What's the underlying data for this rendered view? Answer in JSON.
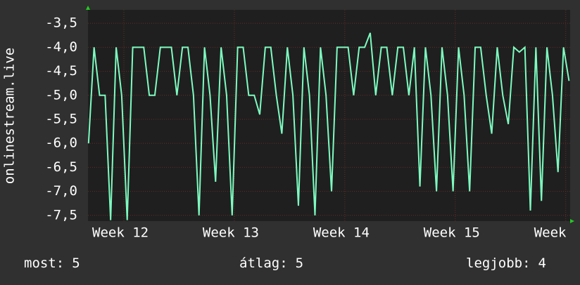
{
  "chart_data": {
    "type": "line",
    "ylabel": "onlinestream.live",
    "x": [
      11.68,
      11.73,
      11.78,
      11.83,
      11.88,
      11.93,
      11.98,
      12.03,
      12.08,
      12.13,
      12.18,
      12.23,
      12.28,
      12.33,
      12.38,
      12.43,
      12.48,
      12.53,
      12.58,
      12.63,
      12.68,
      12.73,
      12.78,
      12.83,
      12.88,
      12.93,
      12.98,
      13.03,
      13.08,
      13.13,
      13.18,
      13.23,
      13.28,
      13.33,
      13.38,
      13.43,
      13.48,
      13.53,
      13.58,
      13.63,
      13.68,
      13.73,
      13.78,
      13.83,
      13.88,
      13.93,
      13.98,
      14.03,
      14.08,
      14.13,
      14.18,
      14.23,
      14.28,
      14.33,
      14.38,
      14.43,
      14.48,
      14.53,
      14.58,
      14.63,
      14.68,
      14.73,
      14.78,
      14.83,
      14.88,
      14.93,
      14.98,
      15.03,
      15.08,
      15.13,
      15.18,
      15.23,
      15.28,
      15.33,
      15.38,
      15.43,
      15.48,
      15.53,
      15.58,
      15.63,
      15.68,
      15.73,
      15.78,
      15.83,
      15.88,
      15.93,
      15.98,
      16.03
    ],
    "series": [
      {
        "name": "onlinestream.live",
        "color": "#7dfcc0",
        "values": [
          -6.0,
          -4.0,
          -5.0,
          -5.0,
          -7.6,
          -4.0,
          -5.0,
          -7.6,
          -4.0,
          -4.0,
          -4.0,
          -5.0,
          -5.0,
          -4.0,
          -4.0,
          -4.0,
          -5.0,
          -4.0,
          -4.0,
          -5.0,
          -7.5,
          -4.0,
          -5.0,
          -6.8,
          -4.0,
          -5.0,
          -7.5,
          -4.0,
          -4.0,
          -5.0,
          -5.0,
          -5.4,
          -4.0,
          -4.0,
          -5.0,
          -5.8,
          -4.0,
          -5.0,
          -7.3,
          -4.0,
          -5.0,
          -7.5,
          -4.0,
          -5.0,
          -7.0,
          -4.0,
          -4.0,
          -4.0,
          -5.0,
          -4.0,
          -4.0,
          -3.7,
          -5.0,
          -4.0,
          -4.0,
          -5.0,
          -4.0,
          -4.0,
          -5.0,
          -4.0,
          -6.9,
          -4.0,
          -5.0,
          -7.0,
          -4.0,
          -5.0,
          -7.0,
          -4.0,
          -5.0,
          -7.0,
          -4.0,
          -4.0,
          -5.0,
          -5.8,
          -4.0,
          -5.0,
          -5.6,
          -4.0,
          -4.1,
          -4.0,
          -7.4,
          -4.0,
          -7.2,
          -4.0,
          -5.0,
          -6.6,
          -4.0,
          -4.7
        ]
      }
    ],
    "xlim": [
      11.675,
      16.04
    ],
    "xticks": [
      {
        "value": 12,
        "label": "Week 12"
      },
      {
        "value": 13,
        "label": "Week 13"
      },
      {
        "value": 14,
        "label": "Week 14"
      },
      {
        "value": 15,
        "label": "Week 15"
      },
      {
        "value": 16,
        "label": "Week"
      }
    ],
    "ylim": [
      -7.62,
      -3.22
    ],
    "yticks": [
      {
        "value": -3.5,
        "label": "-3,5"
      },
      {
        "value": -4.0,
        "label": "-4,0"
      },
      {
        "value": -4.5,
        "label": "-4,5"
      },
      {
        "value": -5.0,
        "label": "-5,0"
      },
      {
        "value": -5.5,
        "label": "-5,5"
      },
      {
        "value": -6.0,
        "label": "-6,0"
      },
      {
        "value": -6.5,
        "label": "-6,5"
      },
      {
        "value": -7.0,
        "label": "-7,0"
      },
      {
        "value": -7.5,
        "label": "-7,5"
      }
    ],
    "grid": true,
    "stats": [
      {
        "label": "most:",
        "value": 5
      },
      {
        "label": "átlag:",
        "value": 5
      },
      {
        "label": "legjobb:",
        "value": 4
      }
    ]
  }
}
